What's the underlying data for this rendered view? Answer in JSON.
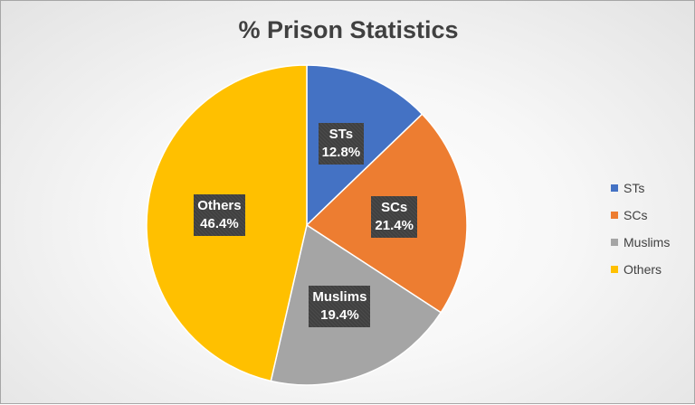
{
  "chart_data": {
    "type": "pie",
    "title": "% Prison Statistics",
    "categories": [
      "STs",
      "SCs",
      "Muslims",
      "Others"
    ],
    "values": [
      12.8,
      21.4,
      19.4,
      46.4
    ],
    "data_labels": [
      "12.8%",
      "21.4%",
      "19.4%",
      "46.4%"
    ],
    "colors": [
      "#4472c4",
      "#ed7d31",
      "#a5a5a5",
      "#ffc000"
    ],
    "legend_position": "right"
  }
}
